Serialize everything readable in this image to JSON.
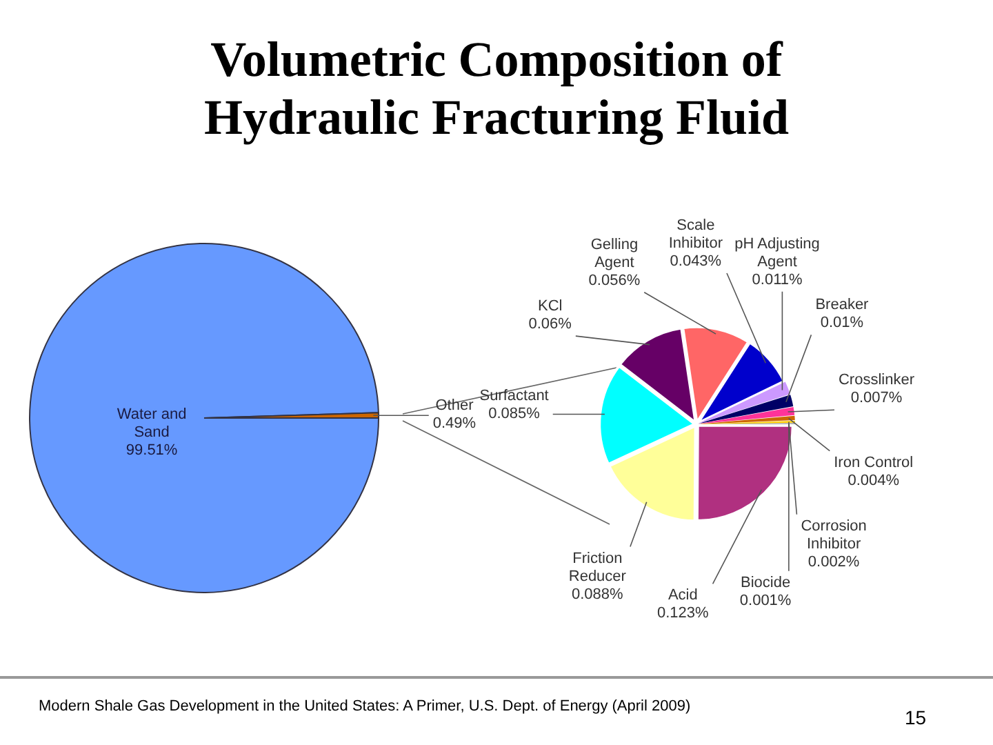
{
  "chart_data": [
    {
      "type": "pie",
      "title": "Volumetric Composition of Hydraulic Fracturing Fluid",
      "categories": [
        "Water and Sand",
        "Other"
      ],
      "values": [
        99.51,
        0.49
      ],
      "colors": [
        "#6699ff",
        "#cc6600"
      ],
      "value_labels": [
        "99.51%",
        "0.49%"
      ],
      "annotations": [
        "Modern Shale Gas Development in the United States: A Primer, U.S. Dept. of Energy (April 2009)",
        "15"
      ]
    },
    {
      "type": "pie",
      "categories": [
        "Acid",
        "Friction Reducer",
        "Surfactant",
        "KCl",
        "Gelling Agent",
        "Scale Inhibitor",
        "pH Adjusting Agent",
        "Breaker",
        "Crosslinker",
        "Iron Control",
        "Corrosion Inhibitor",
        "Biocide"
      ],
      "values": [
        0.123,
        0.088,
        0.085,
        0.06,
        0.056,
        0.043,
        0.011,
        0.01,
        0.007,
        0.004,
        0.002,
        0.001
      ],
      "colors": [
        "#b03080",
        "#ffff99",
        "#00ffff",
        "#660066",
        "#ff6666",
        "#0000cc",
        "#cc99ff",
        "#000066",
        "#ff3399",
        "#cc6600",
        "#ffcc00",
        "#666666"
      ],
      "value_labels": [
        "0.123%",
        "0.088%",
        "0.085%",
        "0.06%",
        "0.056%",
        "0.043%",
        "0.011%",
        "0.01%",
        "0.007%",
        "0.004%",
        "0.002%",
        "0.001%"
      ]
    }
  ]
}
